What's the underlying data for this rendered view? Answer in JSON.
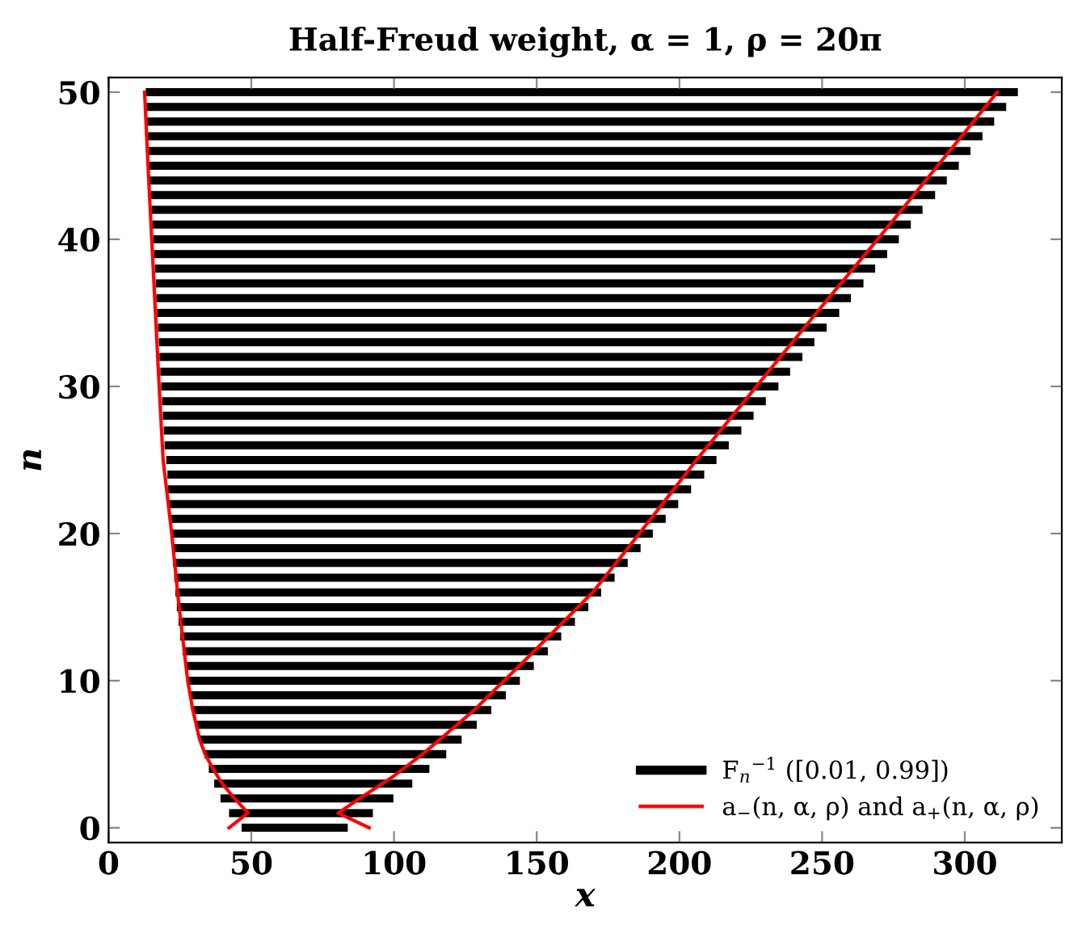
{
  "chart_data": {
    "type": "bar",
    "orientation": "horizontal",
    "title": "Half-Freud weight, α = 1, ρ = 20π",
    "xlabel": "x",
    "ylabel": "n",
    "xlim": [
      0,
      334
    ],
    "ylim": [
      -1,
      51
    ],
    "xticks": [
      0,
      50,
      100,
      150,
      200,
      250,
      300
    ],
    "yticks": [
      0,
      10,
      20,
      30,
      40,
      50
    ],
    "grid": false,
    "legend": "bottom right",
    "series": [
      {
        "name": "F$_{n}$$^{−1}$ ([0.01, 0.99])",
        "color": "#000000",
        "x": [
          0,
          1,
          2,
          3,
          4,
          5,
          6,
          7,
          8,
          9,
          10,
          11,
          12,
          13,
          14,
          15,
          16,
          17,
          18,
          19,
          20,
          21,
          22,
          23,
          24,
          25,
          26,
          27,
          28,
          29,
          30,
          31,
          32,
          33,
          34,
          35,
          36,
          37,
          38,
          39,
          40,
          41,
          42,
          43,
          44,
          45,
          46,
          47,
          48,
          49,
          50
        ],
        "base": [
          46.6,
          42.2,
          39.2,
          37.0,
          35.1,
          33.6,
          32.1,
          30.7,
          29.6,
          28.5,
          27.5,
          26.8,
          25.9,
          25.1,
          24.5,
          23.9,
          23.4,
          23.0,
          22.6,
          22.3,
          21.9,
          21.5,
          21.1,
          20.8,
          20.6,
          20.2,
          19.6,
          19.3,
          19.0,
          18.7,
          18.4,
          18.1,
          17.8,
          17.6,
          17.3,
          17.0,
          16.7,
          16.5,
          16.2,
          15.9,
          15.7,
          15.4,
          15.1,
          14.9,
          14.6,
          14.3,
          14.1,
          13.8,
          13.5,
          13.3,
          13.0
        ],
        "values": [
          37.2,
          50.4,
          60.6,
          69.4,
          77.3,
          84.7,
          91.6,
          98.3,
          104.5,
          110.7,
          116.6,
          122.2,
          128.0,
          133.5,
          138.9,
          144.2,
          149.2,
          154.3,
          159.3,
          164.1,
          168.8,
          173.7,
          178.5,
          183.3,
          188.1,
          192.8,
          197.7,
          202.4,
          207.0,
          211.6,
          216.3,
          220.7,
          225.3,
          229.7,
          234.3,
          239.0,
          243.4,
          248.0,
          252.4,
          256.9,
          261.2,
          265.7,
          270.1,
          274.7,
          279.1,
          283.6,
          287.9,
          292.4,
          296.8,
          301.2,
          305.6
        ]
      },
      {
        "type": "line",
        "name": "a$_{−}$(n, α, ρ) and a$_{+}$(n, α, ρ)",
        "color": "#ff0000",
        "x": [
          0,
          1,
          2,
          3,
          4,
          5,
          6,
          8,
          10,
          15,
          20,
          25,
          30,
          35,
          40,
          45,
          50
        ],
        "values": [
          42.2,
          48.8,
          44.1,
          39.8,
          36.6,
          33.8,
          31.9,
          29.5,
          27.7,
          24.7,
          22.1,
          19.1,
          17.7,
          16.4,
          15.1,
          13.8,
          12.6
        ]
      },
      {
        "type": "line",
        "color": "#ff0000",
        "x": [
          0,
          1,
          2,
          3.5,
          5,
          8,
          11.6,
          16,
          20,
          25,
          30,
          35,
          40,
          45,
          50
        ],
        "values": [
          91.3,
          80.4,
          88,
          99.8,
          110,
          128.1,
          147,
          169.6,
          186,
          206,
          227,
          248,
          269.5,
          290.5,
          311.4
        ]
      }
    ]
  }
}
